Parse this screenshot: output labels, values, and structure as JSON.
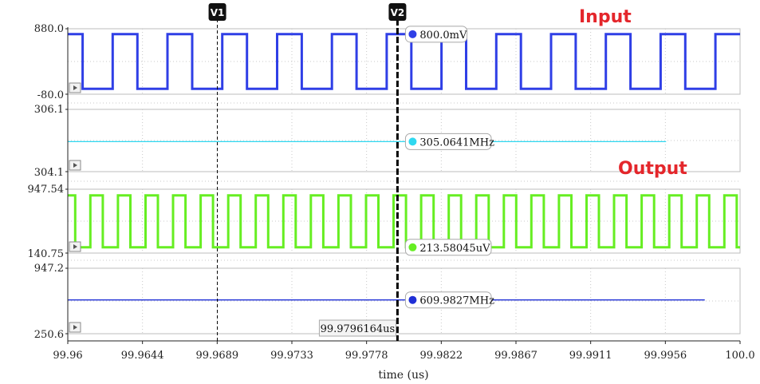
{
  "chart_data": {
    "type": "line",
    "xlabel": "time (us)",
    "x_ticks": [
      "99.96",
      "99.9644",
      "99.9689",
      "99.9733",
      "99.9778",
      "99.9822",
      "99.9867",
      "99.9911",
      "99.9956",
      "100.0"
    ],
    "xlim": [
      99.96,
      100.0
    ],
    "grid": true,
    "panels": [
      {
        "name": "panel-1",
        "ylim": [
          -80.0,
          880.0
        ],
        "ytick_labels": [
          "880.0",
          "-80.0"
        ],
        "color": "#2f3fe6",
        "kind": "square",
        "period": 0.00326,
        "duty": 0.55,
        "start_phase": 0.0,
        "high": 800.0,
        "low": 0.0,
        "marker_value": "800.0mV"
      },
      {
        "name": "panel-2",
        "ylim": [
          304.1,
          306.1
        ],
        "ytick_labels": [
          "306.1",
          "304.1"
        ],
        "color": "#2fd8f0",
        "kind": "flat",
        "value": 305.0641,
        "x_end": 99.9956,
        "marker_value": "305.0641MHz"
      },
      {
        "name": "panel-3",
        "ylim": [
          140.75,
          947.54
        ],
        "ytick_labels": [
          "947.54",
          "140.75"
        ],
        "color": "#66ee22",
        "kind": "square",
        "period": 0.00164,
        "duty": 0.55,
        "start_phase": 0.0,
        "high": 870.0,
        "low": 213.58,
        "marker_value": "213.58045uV"
      },
      {
        "name": "panel-4",
        "ylim": [
          250.6,
          947.2
        ],
        "ytick_labels": [
          "947.2",
          "250.6"
        ],
        "color": "#1f2fd6",
        "kind": "flat",
        "value": 609.9827,
        "x_end": 99.9979,
        "marker_value": "609.9827MHz"
      }
    ],
    "cursors": [
      {
        "label": "V1",
        "x": 99.9689,
        "style": "dashed-thin"
      },
      {
        "label": "V2",
        "x": 99.9796164,
        "style": "dashed-thick",
        "readout": "99.9796164us"
      }
    ],
    "annotations": [
      {
        "text": "Input",
        "panel": 0
      },
      {
        "text": "Output",
        "panel": 2
      }
    ]
  }
}
